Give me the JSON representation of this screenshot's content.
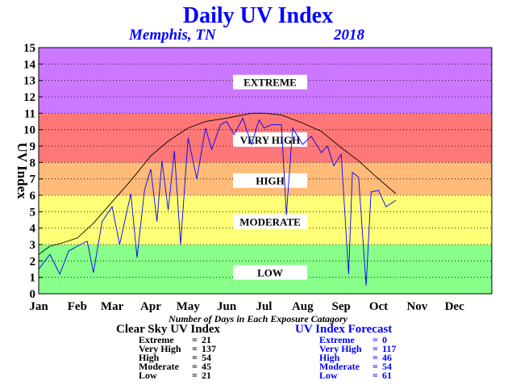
{
  "header": {
    "title": "Daily UV Index",
    "location": "Memphis, TN",
    "year": "2018"
  },
  "colors": {
    "extreme": "#cc77ff",
    "very_high": "#ff7777",
    "high": "#ffbb77",
    "moderate": "#ffff77",
    "low": "#88ff88",
    "clear_sky_line": "#000000",
    "forecast_line": "#0000ff",
    "title": "#0000ff"
  },
  "chart_data": {
    "type": "line",
    "title": "Daily UV Index",
    "subtitle": "Memphis, TN 2018",
    "ylabel": "UV Index",
    "ylim": [
      0,
      15
    ],
    "yticks": [
      "0",
      "1",
      "2",
      "3",
      "4",
      "5",
      "6",
      "7",
      "8",
      "9",
      "10",
      "11",
      "12",
      "13",
      "14",
      "15"
    ],
    "xlim": [
      1,
      365
    ],
    "x_categories": [
      "Jan",
      "Feb",
      "Mar",
      "Apr",
      "May",
      "Jun",
      "Jul",
      "Aug",
      "Sep",
      "Oct",
      "Nov",
      "Dec"
    ],
    "grid": true,
    "bands": [
      {
        "label": "LOW",
        "from": 0,
        "to": 3
      },
      {
        "label": "MODERATE",
        "from": 3,
        "to": 6
      },
      {
        "label": "HIGH",
        "from": 6,
        "to": 8
      },
      {
        "label": "VERY HIGH",
        "from": 8,
        "to": 11
      },
      {
        "label": "EXTREME",
        "from": 11,
        "to": 15
      }
    ],
    "series": [
      {
        "name": "Clear Sky UV Index",
        "color": "#000000",
        "x": [
          1,
          10,
          20,
          32,
          45,
          60,
          75,
          91,
          105,
          121,
          135,
          152,
          165,
          172,
          182,
          196,
          213,
          228,
          244,
          258,
          274,
          288
        ],
        "y": [
          2.4,
          2.9,
          3.1,
          3.4,
          4.3,
          5.6,
          6.9,
          8.4,
          9.3,
          10.1,
          10.5,
          10.7,
          10.9,
          11.0,
          11.0,
          10.9,
          10.4,
          9.9,
          8.9,
          8.1,
          7.0,
          6.1
        ]
      },
      {
        "name": "UV Index Forecast",
        "color": "#0000ff",
        "x": [
          1,
          10,
          18,
          25,
          32,
          40,
          45,
          52,
          60,
          66,
          75,
          80,
          86,
          91,
          96,
          100,
          105,
          110,
          115,
          121,
          128,
          135,
          140,
          147,
          152,
          158,
          165,
          172,
          178,
          182,
          188,
          196,
          200,
          205,
          213,
          220,
          228,
          233,
          238,
          244,
          250,
          253,
          258,
          264,
          268,
          274,
          280,
          288
        ],
        "y": [
          1.5,
          2.4,
          1.2,
          2.6,
          2.9,
          3.2,
          1.3,
          4.4,
          5.3,
          3.0,
          6.1,
          2.2,
          6.3,
          7.6,
          4.4,
          8.1,
          5.1,
          8.7,
          3.0,
          9.5,
          7.0,
          10.1,
          8.8,
          10.3,
          10.5,
          9.7,
          10.7,
          9.1,
          10.6,
          10.1,
          10.3,
          10.3,
          4.8,
          10.1,
          9.1,
          9.6,
          8.6,
          9.0,
          7.8,
          8.5,
          1.2,
          7.4,
          7.1,
          0.5,
          6.2,
          6.3,
          5.3,
          5.7
        ]
      }
    ]
  },
  "exposure_caption": "Number of Days in Each Exposure Catagory",
  "clear_sky": {
    "title": "Clear Sky UV Index",
    "rows": [
      {
        "label": "Extreme",
        "value": "21"
      },
      {
        "label": "Very High",
        "value": "137"
      },
      {
        "label": "High",
        "value": "54"
      },
      {
        "label": "Moderate",
        "value": "45"
      },
      {
        "label": "Low",
        "value": "21"
      }
    ]
  },
  "forecast": {
    "title": "UV Index Forecast",
    "rows": [
      {
        "label": "Extreme",
        "value": "0"
      },
      {
        "label": "Very High",
        "value": "117"
      },
      {
        "label": "High",
        "value": "46"
      },
      {
        "label": "Moderate",
        "value": "54"
      },
      {
        "label": "Low",
        "value": "61"
      }
    ]
  }
}
